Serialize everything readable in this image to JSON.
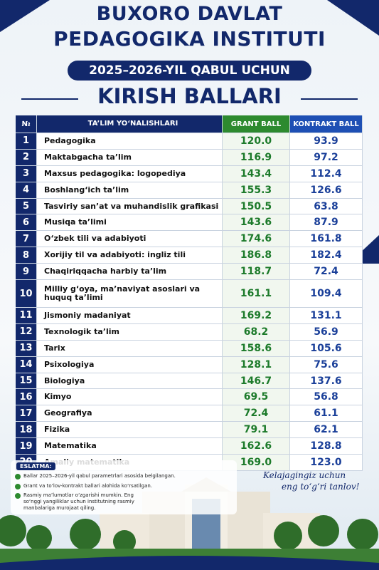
{
  "header": {
    "title_line1": "BUXORO DAVLAT",
    "title_line2": "PEDAGOGIKA INSTITUTI",
    "subtitle": "2025–2026-YIL QABUL UCHUN",
    "heading": "KIRISH BALLARI"
  },
  "table": {
    "columns": [
      "№",
      "TA’LIM YO‘NALISHLARI",
      "GRANT BALL",
      "KONTRAKT BALL"
    ],
    "rows": [
      [
        "1",
        "Pedagogika",
        "120.0",
        "93.9"
      ],
      [
        "2",
        "Maktabgacha ta’lim",
        "116.9",
        "97.2"
      ],
      [
        "3",
        "Maxsus pedagogika: logopediya",
        "143.4",
        "112.4"
      ],
      [
        "4",
        "Boshlang‘ich ta’lim",
        "155.3",
        "126.6"
      ],
      [
        "5",
        "Tasviriy san’at va muhandislik grafikasi",
        "150.5",
        "63.8"
      ],
      [
        "6",
        "Musiqa ta’limi",
        "143.6",
        "87.9"
      ],
      [
        "7",
        "O‘zbek tili va adabiyoti",
        "174.6",
        "161.8"
      ],
      [
        "8",
        "Xorijiy til va adabiyoti: ingliz tili",
        "186.8",
        "182.4"
      ],
      [
        "9",
        "Chaqiriqqacha harbiy ta’lim",
        "118.7",
        "72.4"
      ],
      [
        "10",
        "Milliy g‘oya, ma’naviyat asoslari va huquq ta’limi",
        "161.1",
        "109.4"
      ],
      [
        "11",
        "Jismoniy madaniyat",
        "169.2",
        "131.1"
      ],
      [
        "12",
        "Texnologik ta’lim",
        "68.2",
        "56.9"
      ],
      [
        "13",
        "Tarix",
        "158.6",
        "105.6"
      ],
      [
        "14",
        "Psixologiya",
        "128.1",
        "75.6"
      ],
      [
        "15",
        "Biologiya",
        "146.7",
        "137.6"
      ],
      [
        "16",
        "Kimyo",
        "69.5",
        "56.8"
      ],
      [
        "17",
        "Geografiya",
        "72.4",
        "61.1"
      ],
      [
        "18",
        "Fizika",
        "79.1",
        "62.1"
      ],
      [
        "19",
        "Matematika",
        "162.6",
        "128.8"
      ],
      [
        "20",
        "Amaliy matematika",
        "169.0",
        "123.0"
      ]
    ]
  },
  "notes": {
    "title": "ESLATMA:",
    "items": [
      "Ballar 2025–2026-yil qabul parametrlari asosida belgilangan.",
      "Grant va to‘lov-kontrakt ballari alohida ko‘rsatilgan.",
      "Rasmiy ma’lumotlar o‘zgarishi mumkin. Eng so‘nggi yangiliklar uchun institutning rasmiy manbalariga murojaat qiling."
    ]
  },
  "slogan": {
    "line1": "Kelajagingiz uchun",
    "line2": "eng to‘g‘ri tanlov!"
  }
}
